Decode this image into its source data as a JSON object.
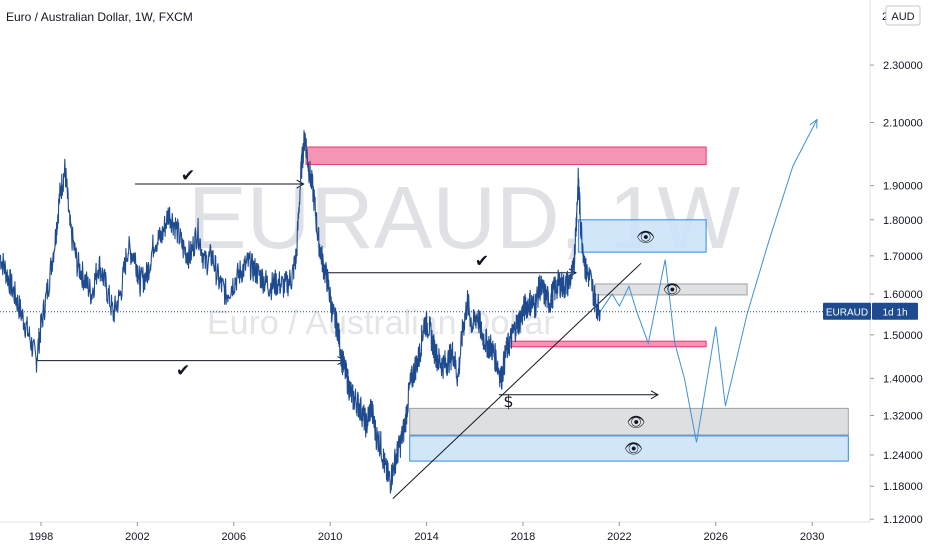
{
  "chart_data": {
    "type": "line",
    "title": "Euro / Australian Dollar, 1W, FXCM",
    "watermark_symbol": "EURAUD, 1W",
    "watermark_name": "Euro / Australian Dollar",
    "currency_label": "AUD",
    "last_price_tag": {
      "symbol": "EURAUD",
      "countdown": "1d 1h",
      "price": 1.556
    },
    "y_axis": {
      "scale": "log",
      "ticks": [
        "2.30000",
        "2.10000",
        "1.90000",
        "1.80000",
        "1.70000",
        "1.60000",
        "1.50000",
        "1.40000",
        "1.32000",
        "1.24000",
        "1.18000",
        "1.12000"
      ],
      "ylim": [
        1.115,
        2.55
      ],
      "top_cut_label": "2"
    },
    "x_axis": {
      "ticks": [
        "1998",
        "2002",
        "2006",
        "2010",
        "2014",
        "2018",
        "2022",
        "2026",
        "2030"
      ],
      "xlim": [
        1996.3,
        2032.4
      ]
    },
    "series": [
      {
        "color": "#1e4b8f",
        "points": [
          [
            1996.3,
            1.7
          ],
          [
            1996.6,
            1.65
          ],
          [
            1996.9,
            1.6
          ],
          [
            1997.2,
            1.55
          ],
          [
            1997.5,
            1.5
          ],
          [
            1997.8,
            1.44
          ],
          [
            1998.0,
            1.52
          ],
          [
            1998.3,
            1.62
          ],
          [
            1998.6,
            1.75
          ],
          [
            1998.8,
            1.88
          ],
          [
            1999.0,
            1.95
          ],
          [
            1999.2,
            1.78
          ],
          [
            1999.5,
            1.68
          ],
          [
            1999.8,
            1.64
          ],
          [
            2000.1,
            1.6
          ],
          [
            2000.4,
            1.68
          ],
          [
            2000.7,
            1.62
          ],
          [
            2001.0,
            1.55
          ],
          [
            2001.3,
            1.6
          ],
          [
            2001.6,
            1.72
          ],
          [
            2001.9,
            1.7
          ],
          [
            2002.1,
            1.63
          ],
          [
            2002.4,
            1.65
          ],
          [
            2002.7,
            1.74
          ],
          [
            2003.0,
            1.75
          ],
          [
            2003.3,
            1.82
          ],
          [
            2003.6,
            1.78
          ],
          [
            2003.9,
            1.72
          ],
          [
            2004.2,
            1.7
          ],
          [
            2004.5,
            1.77
          ],
          [
            2004.8,
            1.68
          ],
          [
            2005.1,
            1.7
          ],
          [
            2005.4,
            1.63
          ],
          [
            2005.7,
            1.6
          ],
          [
            2006.0,
            1.63
          ],
          [
            2006.3,
            1.66
          ],
          [
            2006.6,
            1.68
          ],
          [
            2006.9,
            1.66
          ],
          [
            2007.2,
            1.64
          ],
          [
            2007.5,
            1.62
          ],
          [
            2007.8,
            1.63
          ],
          [
            2008.1,
            1.62
          ],
          [
            2008.4,
            1.64
          ],
          [
            2008.6,
            1.7
          ],
          [
            2008.8,
            1.95
          ],
          [
            2008.95,
            2.06
          ],
          [
            2009.1,
            1.96
          ],
          [
            2009.3,
            1.88
          ],
          [
            2009.5,
            1.75
          ],
          [
            2009.7,
            1.68
          ],
          [
            2009.9,
            1.63
          ],
          [
            2010.1,
            1.55
          ],
          [
            2010.3,
            1.52
          ],
          [
            2010.5,
            1.44
          ],
          [
            2010.7,
            1.4
          ],
          [
            2010.9,
            1.36
          ],
          [
            2011.1,
            1.35
          ],
          [
            2011.3,
            1.33
          ],
          [
            2011.5,
            1.3
          ],
          [
            2011.7,
            1.34
          ],
          [
            2011.9,
            1.28
          ],
          [
            2012.1,
            1.26
          ],
          [
            2012.3,
            1.21
          ],
          [
            2012.5,
            1.19
          ],
          [
            2012.7,
            1.23
          ],
          [
            2012.9,
            1.26
          ],
          [
            2013.1,
            1.3
          ],
          [
            2013.3,
            1.38
          ],
          [
            2013.5,
            1.42
          ],
          [
            2013.7,
            1.45
          ],
          [
            2013.9,
            1.53
          ],
          [
            2014.1,
            1.52
          ],
          [
            2014.3,
            1.47
          ],
          [
            2014.5,
            1.44
          ],
          [
            2014.7,
            1.43
          ],
          [
            2014.9,
            1.44
          ],
          [
            2015.1,
            1.46
          ],
          [
            2015.3,
            1.4
          ],
          [
            2015.5,
            1.51
          ],
          [
            2015.7,
            1.58
          ],
          [
            2015.9,
            1.52
          ],
          [
            2016.1,
            1.55
          ],
          [
            2016.3,
            1.5
          ],
          [
            2016.5,
            1.48
          ],
          [
            2016.7,
            1.47
          ],
          [
            2016.9,
            1.44
          ],
          [
            2017.1,
            1.4
          ],
          [
            2017.3,
            1.46
          ],
          [
            2017.5,
            1.49
          ],
          [
            2017.7,
            1.52
          ],
          [
            2017.9,
            1.54
          ],
          [
            2018.1,
            1.57
          ],
          [
            2018.3,
            1.58
          ],
          [
            2018.5,
            1.57
          ],
          [
            2018.7,
            1.62
          ],
          [
            2018.9,
            1.6
          ],
          [
            2019.1,
            1.58
          ],
          [
            2019.3,
            1.61
          ],
          [
            2019.5,
            1.63
          ],
          [
            2019.7,
            1.62
          ],
          [
            2019.9,
            1.63
          ],
          [
            2020.1,
            1.66
          ],
          [
            2020.2,
            1.78
          ],
          [
            2020.3,
            1.92
          ],
          [
            2020.4,
            1.78
          ],
          [
            2020.6,
            1.66
          ],
          [
            2020.8,
            1.64
          ],
          [
            2021.0,
            1.58
          ],
          [
            2021.2,
            1.56
          ]
        ]
      }
    ],
    "grid": false,
    "legend": "none",
    "annotations": {
      "checkmark": "✔",
      "eye": "👁",
      "dollar": "$",
      "zone_colors": {
        "supply": "#f48fb1",
        "supply_border": "#e5396a",
        "demand": "#cde3f9",
        "demand_border": "#2f8ae5",
        "neutral": "#d8d9dc",
        "neutral_border": "#9ea0a5"
      },
      "projection_color": "#3d93d8"
    }
  }
}
